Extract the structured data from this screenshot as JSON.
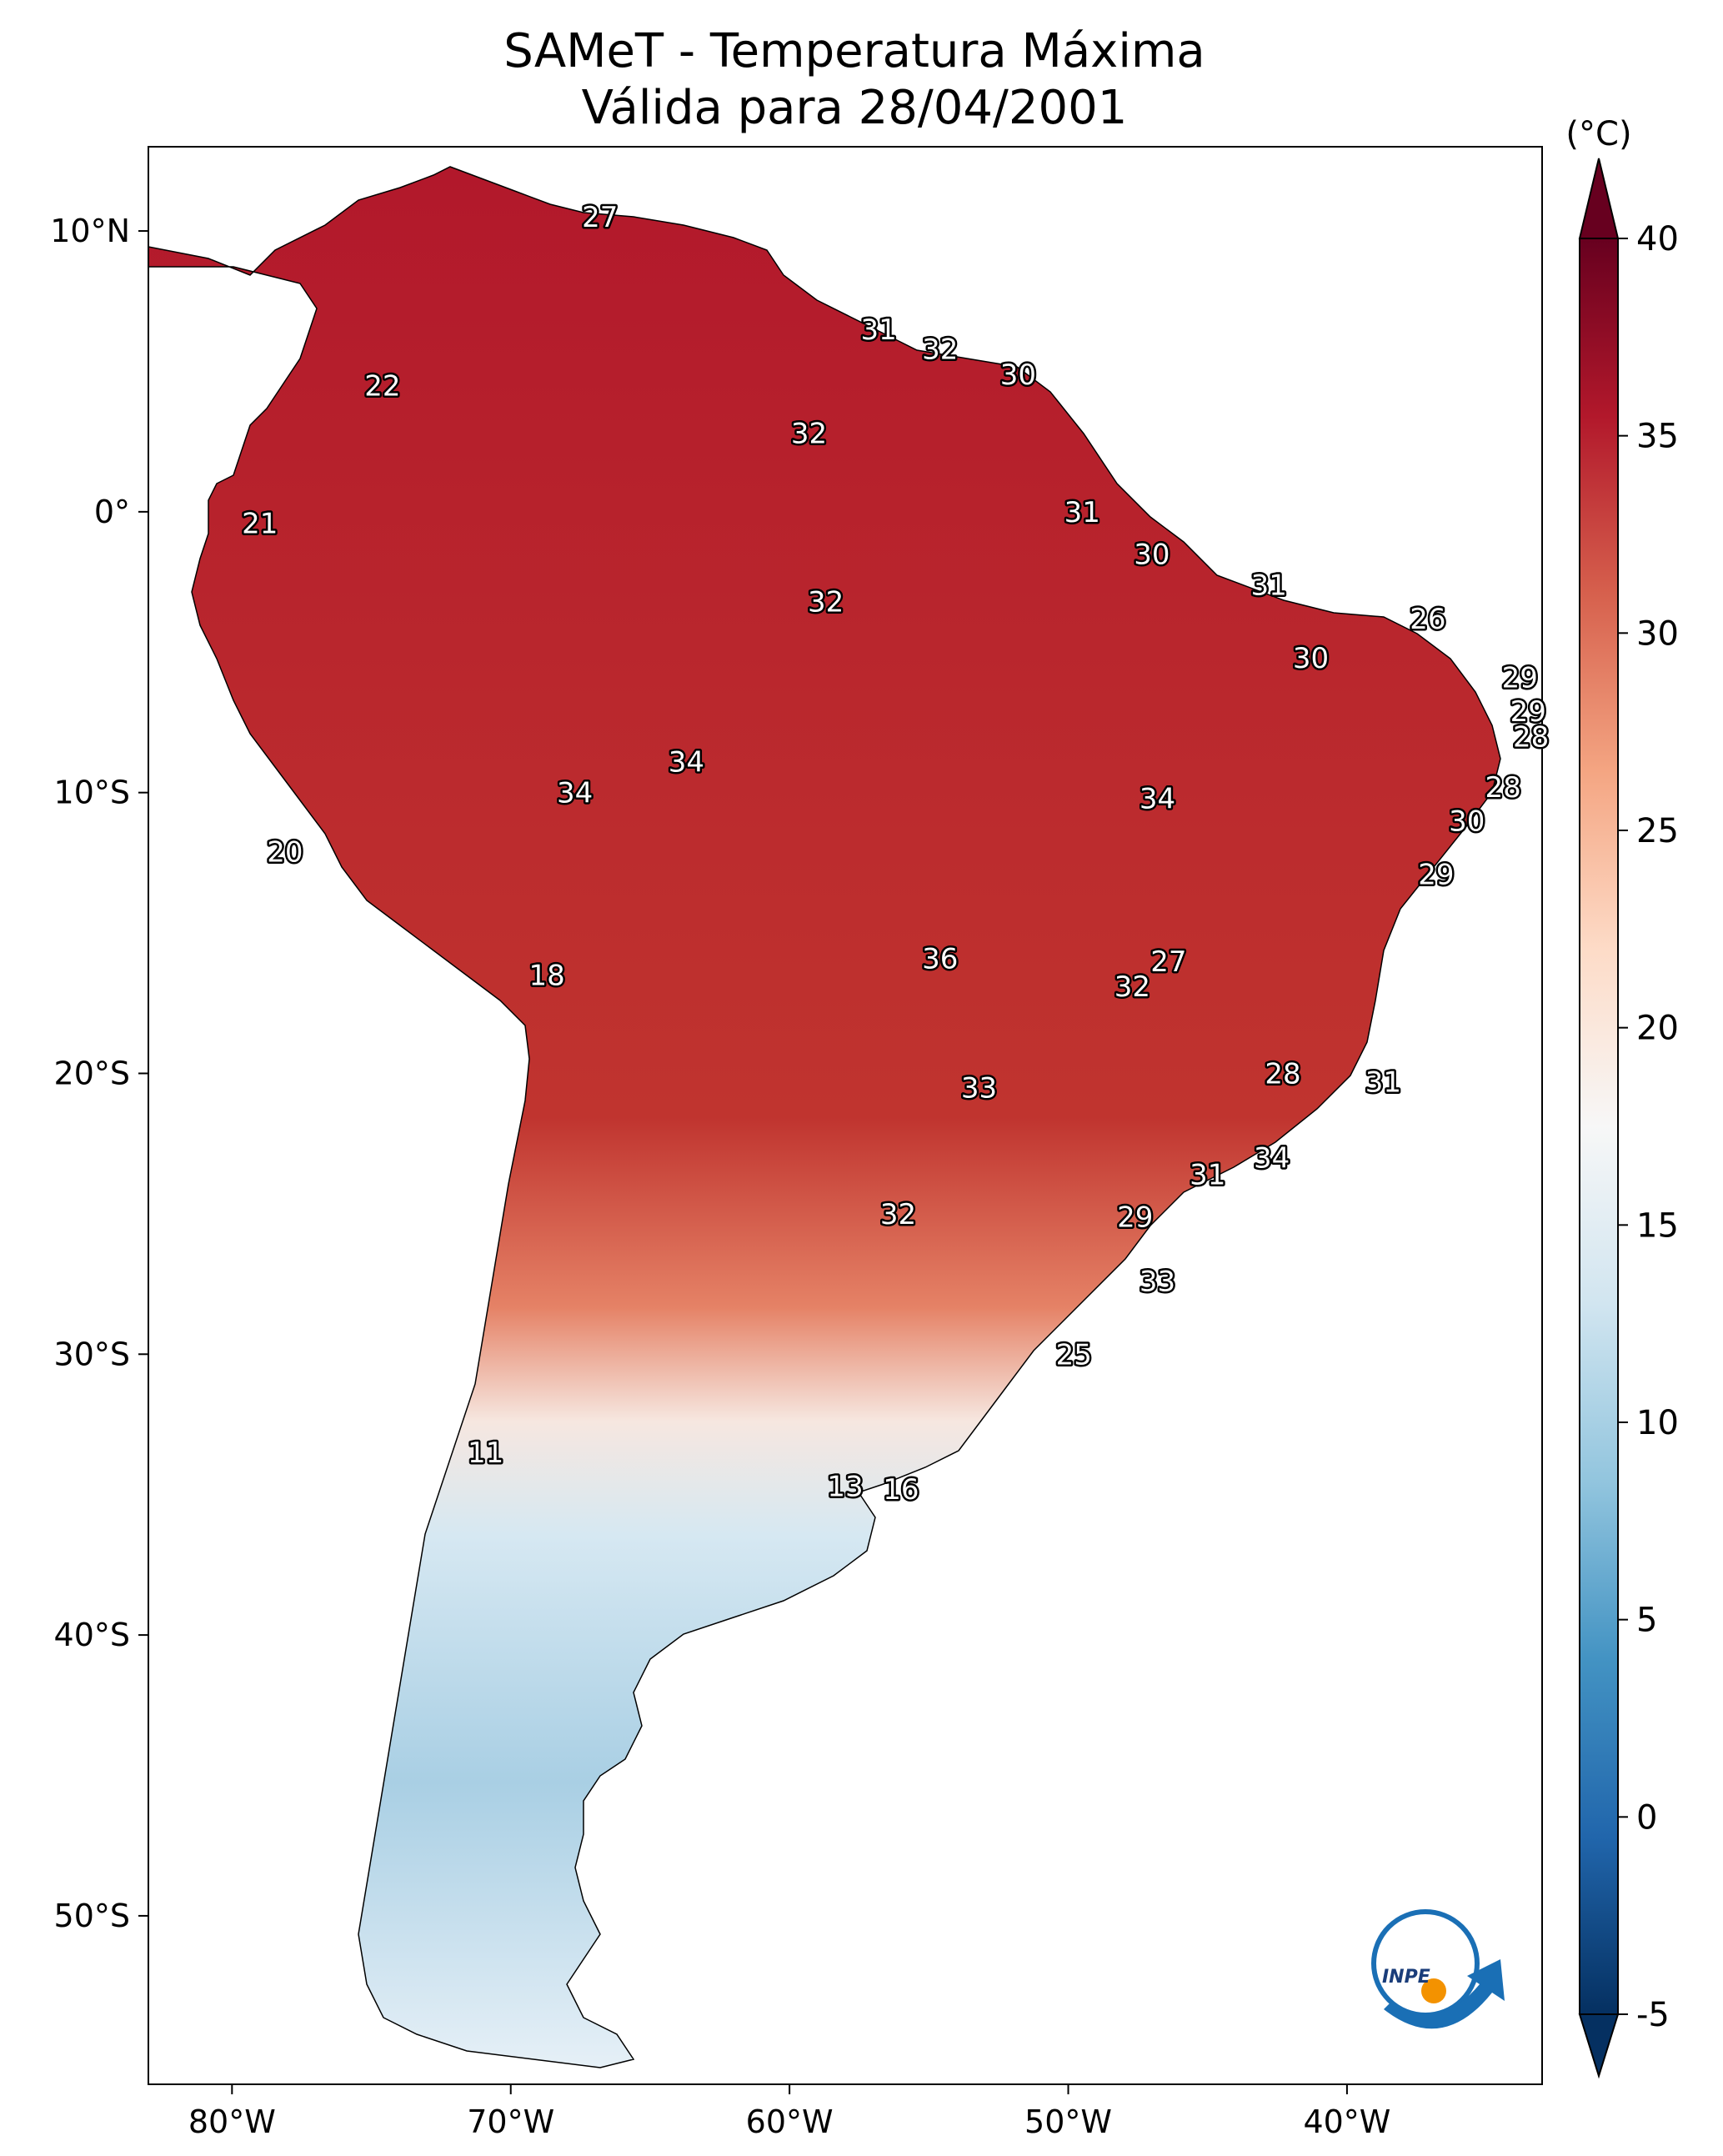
{
  "title": {
    "line1": "SAMeT - Temperatura Máxima",
    "line2": "Válida para 28/04/2001"
  },
  "axes": {
    "lon_ticks": [
      "80°W",
      "70°W",
      "60°W",
      "50°W",
      "40°W"
    ],
    "lat_ticks": [
      "10°N",
      "0°",
      "10°S",
      "20°S",
      "30°S",
      "40°S",
      "50°S"
    ],
    "lon_values": [
      -80,
      -70,
      -60,
      -50,
      -40
    ],
    "lat_values": [
      10,
      0,
      -10,
      -20,
      -30,
      -40,
      -50
    ],
    "lon_range": [
      -83,
      -33
    ],
    "lat_range": [
      -56,
      13
    ]
  },
  "colorbar": {
    "unit": "(°C)",
    "ticks": [
      "40",
      "35",
      "30",
      "25",
      "20",
      "15",
      "10",
      "5",
      "0",
      "-5"
    ],
    "tick_values": [
      40,
      35,
      30,
      25,
      20,
      15,
      10,
      5,
      0,
      -5
    ],
    "range": [
      -5,
      40
    ],
    "colors": [
      "#053061",
      "#2166ac",
      "#4393c3",
      "#92c5de",
      "#d1e5f0",
      "#f7f7f7",
      "#fddbc7",
      "#f4a582",
      "#d6604d",
      "#b2182b",
      "#67001f"
    ]
  },
  "labels": [
    {
      "text": "27",
      "lon": -66.8,
      "lat": 10.5
    },
    {
      "text": "22",
      "lon": -74.6,
      "lat": 4.5
    },
    {
      "text": "31",
      "lon": -56.8,
      "lat": 6.5
    },
    {
      "text": "32",
      "lon": -54.6,
      "lat": 5.8
    },
    {
      "text": "30",
      "lon": -51.8,
      "lat": 4.9
    },
    {
      "text": "32",
      "lon": -59.3,
      "lat": 2.8
    },
    {
      "text": "21",
      "lon": -79.0,
      "lat": -0.4
    },
    {
      "text": "31",
      "lon": -49.5,
      "lat": 0.0
    },
    {
      "text": "30",
      "lon": -47.0,
      "lat": -1.5
    },
    {
      "text": "31",
      "lon": -42.8,
      "lat": -2.6
    },
    {
      "text": "32",
      "lon": -58.7,
      "lat": -3.2
    },
    {
      "text": "26",
      "lon": -37.1,
      "lat": -3.8
    },
    {
      "text": "30",
      "lon": -41.3,
      "lat": -5.2
    },
    {
      "text": "29",
      "lon": -33.8,
      "lat": -5.9
    },
    {
      "text": "29",
      "lon": -33.5,
      "lat": -7.1
    },
    {
      "text": "28",
      "lon": -33.4,
      "lat": -8.0
    },
    {
      "text": "34",
      "lon": -63.7,
      "lat": -8.9
    },
    {
      "text": "34",
      "lon": -67.7,
      "lat": -10.0
    },
    {
      "text": "34",
      "lon": -46.8,
      "lat": -10.2
    },
    {
      "text": "28",
      "lon": -34.4,
      "lat": -9.8
    },
    {
      "text": "30",
      "lon": -35.7,
      "lat": -11.0
    },
    {
      "text": "20",
      "lon": -78.1,
      "lat": -12.1
    },
    {
      "text": "29",
      "lon": -36.8,
      "lat": -12.9
    },
    {
      "text": "36",
      "lon": -54.6,
      "lat": -15.9
    },
    {
      "text": "27",
      "lon": -46.4,
      "lat": -16.0
    },
    {
      "text": "18",
      "lon": -68.7,
      "lat": -16.5
    },
    {
      "text": "32",
      "lon": -47.7,
      "lat": -16.9
    },
    {
      "text": "28",
      "lon": -42.3,
      "lat": -20.0
    },
    {
      "text": "31",
      "lon": -38.7,
      "lat": -20.3
    },
    {
      "text": "33",
      "lon": -53.2,
      "lat": -20.5
    },
    {
      "text": "34",
      "lon": -42.7,
      "lat": -23.0
    },
    {
      "text": "31",
      "lon": -45.0,
      "lat": -23.6
    },
    {
      "text": "32",
      "lon": -56.1,
      "lat": -25.0
    },
    {
      "text": "29",
      "lon": -47.6,
      "lat": -25.1
    },
    {
      "text": "33",
      "lon": -46.8,
      "lat": -27.4
    },
    {
      "text": "25",
      "lon": -49.8,
      "lat": -30.0
    },
    {
      "text": "11",
      "lon": -70.9,
      "lat": -33.5
    },
    {
      "text": "13",
      "lon": -58.0,
      "lat": -34.7
    },
    {
      "text": "16",
      "lon": -56.0,
      "lat": -34.8
    }
  ]
}
